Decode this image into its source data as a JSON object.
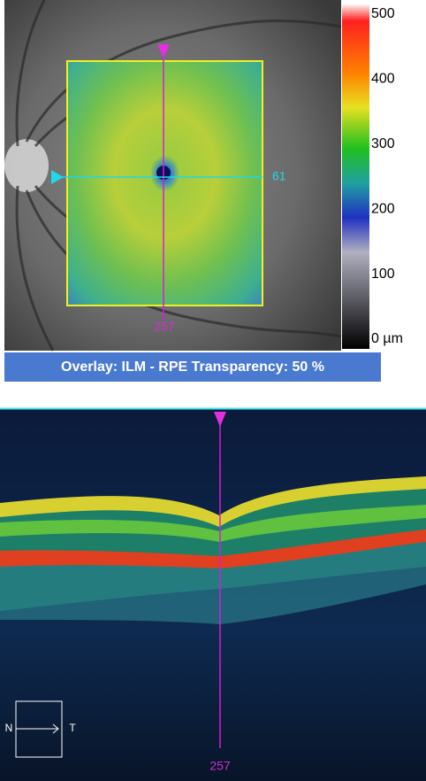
{
  "fundus": {
    "scale_labels": [
      "500",
      "400",
      "300",
      "200",
      "100",
      "0 µm"
    ],
    "horizontal_scan_label": "61",
    "vertical_scan_label": "257"
  },
  "overlay_caption": "Overlay: ILM - RPE  Transparency: 50 %",
  "bscan": {
    "scan_label": "257",
    "orientation": {
      "left": "N",
      "right": "T"
    }
  }
}
